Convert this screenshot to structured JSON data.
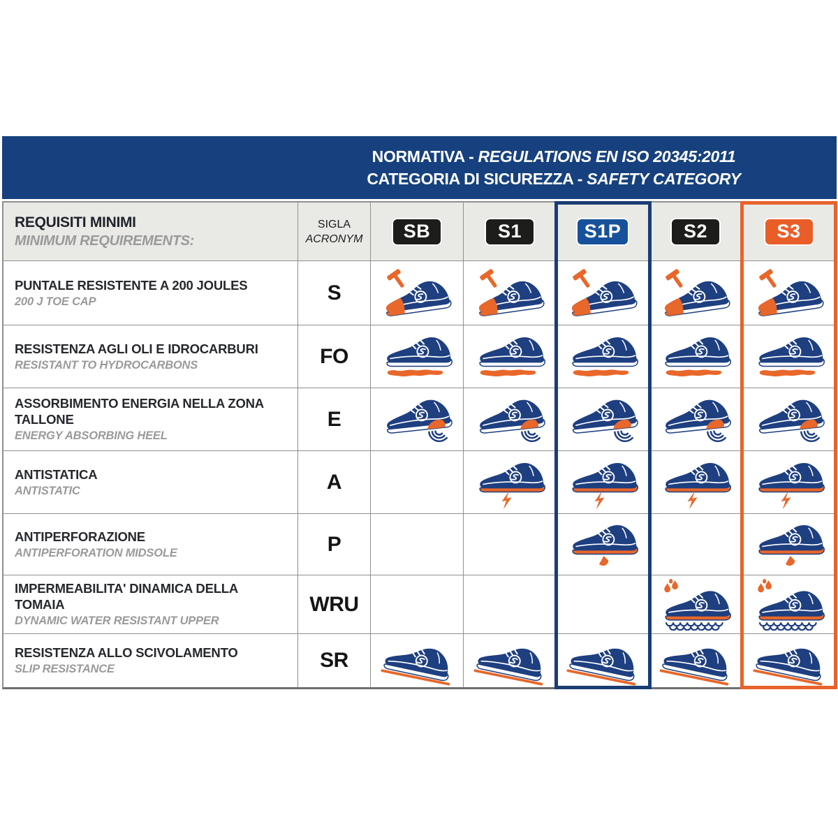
{
  "banner": {
    "line1_normal": "NORMATIVA - ",
    "line1_italic": "REGULATIONS EN ISO 20345:2011",
    "line2_normal": "CATEGORIA DI SICUREZZA - ",
    "line2_italic": "SAFETY CATEGORY"
  },
  "table": {
    "row_header": {
      "title": "REQUISITI MINIMI",
      "subtitle": "MINIMUM REQUIREMENTS:",
      "sigla": "SIGLA",
      "acronym": "ACRONYM"
    },
    "categories": [
      {
        "code": "SB",
        "badge_color": "#1d1d1b",
        "highlight": null
      },
      {
        "code": "S1",
        "badge_color": "#1d1d1b",
        "highlight": null
      },
      {
        "code": "S1P",
        "badge_color": "#17519b",
        "highlight": "#1a3d74"
      },
      {
        "code": "S2",
        "badge_color": "#1d1d1b",
        "highlight": null
      },
      {
        "code": "S3",
        "badge_color": "#e95e28",
        "highlight": "#e8632b"
      }
    ],
    "rows": [
      {
        "title": "PUNTALE RESISTENTE A 200 JOULES",
        "subtitle": "200 J TOE CAP",
        "acronym": "S",
        "icon": "shoe-toecap-hammer",
        "applies": [
          true,
          true,
          true,
          true,
          true
        ]
      },
      {
        "title": "RESISTENZA AGLI OLI E IDROCARBURI",
        "subtitle": "RESISTANT TO HYDROCARBONS",
        "acronym": "FO",
        "icon": "shoe-oil-resistant",
        "applies": [
          true,
          true,
          true,
          true,
          true
        ]
      },
      {
        "title": "ASSORBIMENTO ENERGIA NELLA ZONA TALLONE",
        "subtitle": "ENERGY ABSORBING HEEL",
        "acronym": "E",
        "icon": "shoe-energy-heel",
        "applies": [
          true,
          true,
          true,
          true,
          true
        ]
      },
      {
        "title": "ANTISTATICA",
        "subtitle": "ANTISTATIC",
        "acronym": "A",
        "icon": "shoe-antistatic",
        "applies": [
          false,
          true,
          true,
          true,
          true
        ]
      },
      {
        "title": "ANTIPERFORAZIONE",
        "subtitle": "ANTIPERFORATION MIDSOLE",
        "acronym": "P",
        "icon": "shoe-antiperforation",
        "applies": [
          false,
          false,
          true,
          false,
          true
        ]
      },
      {
        "title": "IMPERMEABILITA' DINAMICA DELLA TOMAIA",
        "subtitle": "DYNAMIC WATER RESISTANT UPPER",
        "acronym": "WRU",
        "icon": "shoe-water-resistant",
        "applies": [
          false,
          false,
          false,
          true,
          true
        ]
      },
      {
        "title": "RESISTENZA ALLO SCIVOLAMENTO",
        "subtitle": "SLIP RESISTANCE",
        "acronym": "SR",
        "icon": "shoe-slip-resistance",
        "applies": [
          true,
          true,
          true,
          true,
          true
        ]
      }
    ]
  },
  "colors": {
    "banner_blue": "#16417e",
    "shoe_navy": "#1e3f80",
    "accent_orange": "#e8672a",
    "header_row_bg": "#e9e9e6",
    "grid_line": "#8f8f8f",
    "subtitle_gray": "#9a9a9a"
  }
}
